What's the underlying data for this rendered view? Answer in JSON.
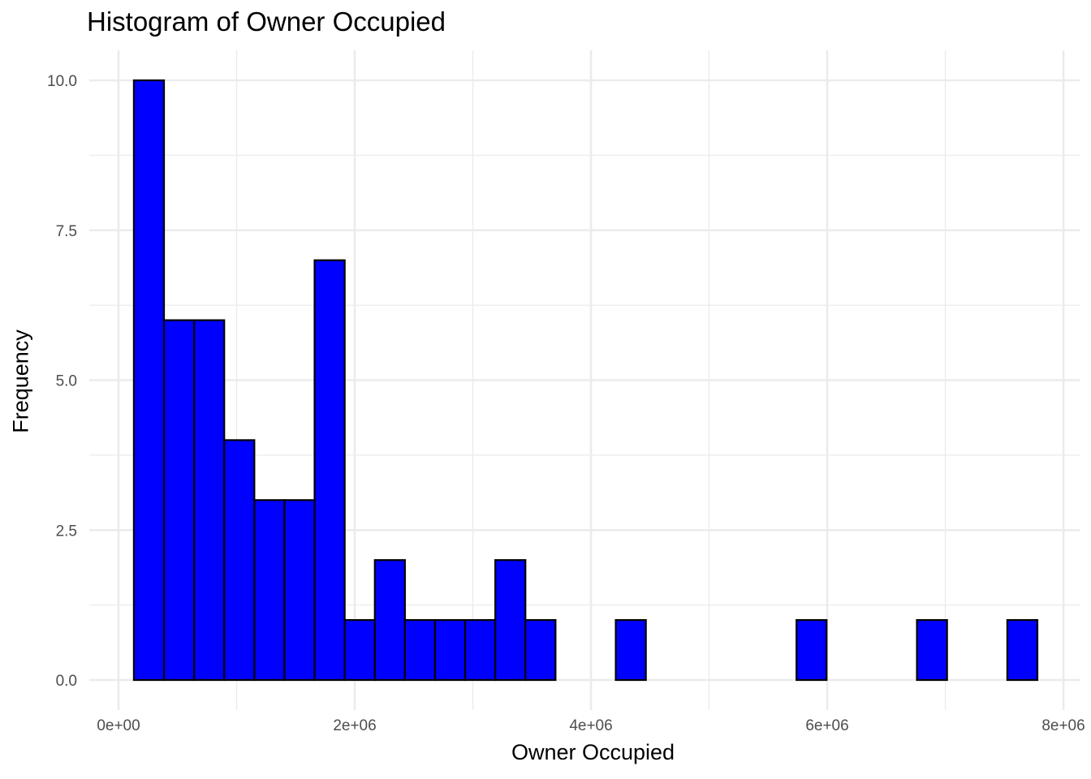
{
  "chart_data": {
    "type": "bar",
    "title": "Histogram of Owner Occupied",
    "xlabel": "Owner Occupied",
    "ylabel": "Frequency",
    "bin_width": 255000,
    "bins": [
      {
        "x0": 130000,
        "x1": 385000,
        "count": 10
      },
      {
        "x0": 385000,
        "x1": 640000,
        "count": 6
      },
      {
        "x0": 640000,
        "x1": 895000,
        "count": 6
      },
      {
        "x0": 895000,
        "x1": 1150000,
        "count": 4
      },
      {
        "x0": 1150000,
        "x1": 1405000,
        "count": 3
      },
      {
        "x0": 1405000,
        "x1": 1660000,
        "count": 3
      },
      {
        "x0": 1660000,
        "x1": 1915000,
        "count": 7
      },
      {
        "x0": 1915000,
        "x1": 2170000,
        "count": 1
      },
      {
        "x0": 2170000,
        "x1": 2425000,
        "count": 2
      },
      {
        "x0": 2425000,
        "x1": 2680000,
        "count": 1
      },
      {
        "x0": 2680000,
        "x1": 2935000,
        "count": 1
      },
      {
        "x0": 2935000,
        "x1": 3190000,
        "count": 1
      },
      {
        "x0": 3190000,
        "x1": 3445000,
        "count": 2
      },
      {
        "x0": 3445000,
        "x1": 3700000,
        "count": 1
      },
      {
        "x0": 3700000,
        "x1": 3955000,
        "count": 0
      },
      {
        "x0": 3955000,
        "x1": 4210000,
        "count": 0
      },
      {
        "x0": 4210000,
        "x1": 4465000,
        "count": 1
      },
      {
        "x0": 4465000,
        "x1": 4720000,
        "count": 0
      },
      {
        "x0": 4720000,
        "x1": 4975000,
        "count": 0
      },
      {
        "x0": 4975000,
        "x1": 5230000,
        "count": 0
      },
      {
        "x0": 5230000,
        "x1": 5485000,
        "count": 0
      },
      {
        "x0": 5485000,
        "x1": 5740000,
        "count": 0
      },
      {
        "x0": 5740000,
        "x1": 5995000,
        "count": 1
      },
      {
        "x0": 5995000,
        "x1": 6250000,
        "count": 0
      },
      {
        "x0": 6250000,
        "x1": 6505000,
        "count": 0
      },
      {
        "x0": 6505000,
        "x1": 6760000,
        "count": 0
      },
      {
        "x0": 6760000,
        "x1": 7015000,
        "count": 1
      },
      {
        "x0": 7015000,
        "x1": 7270000,
        "count": 0
      },
      {
        "x0": 7270000,
        "x1": 7525000,
        "count": 0
      },
      {
        "x0": 7525000,
        "x1": 7780000,
        "count": 1
      }
    ],
    "xlim": [
      0,
      8000000
    ],
    "ylim": [
      0,
      10
    ],
    "x_ticks": [
      {
        "value": 0,
        "label": "0e+00"
      },
      {
        "value": 2000000,
        "label": "2e+06"
      },
      {
        "value": 4000000,
        "label": "4e+06"
      },
      {
        "value": 6000000,
        "label": "6e+06"
      },
      {
        "value": 8000000,
        "label": "8e+06"
      }
    ],
    "y_ticks": [
      {
        "value": 0,
        "label": "0.0"
      },
      {
        "value": 2.5,
        "label": "2.5"
      },
      {
        "value": 5,
        "label": "5.0"
      },
      {
        "value": 7.5,
        "label": "7.5"
      },
      {
        "value": 10,
        "label": "10.0"
      }
    ],
    "grid": true,
    "legend": "none",
    "colors": {
      "fill": "#0000ff",
      "outline": "#000000",
      "grid": "#ebebeb",
      "tick_text": "#4d4d4d"
    }
  }
}
